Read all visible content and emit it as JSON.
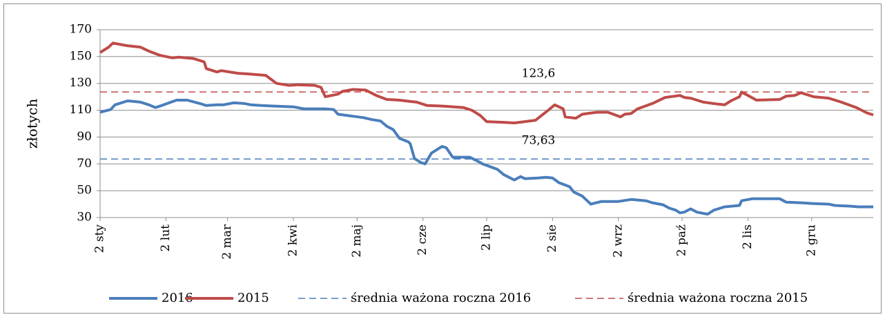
{
  "chart_data": {
    "type": "line",
    "y_label": "złotych",
    "xlim": [
      0,
      364
    ],
    "xticks": [
      {
        "value": 0,
        "label": "2 sty"
      },
      {
        "value": 31,
        "label": "2 lut"
      },
      {
        "value": 60,
        "label": "2 mar"
      },
      {
        "value": 91,
        "label": "2 kwi"
      },
      {
        "value": 121,
        "label": "2 maj"
      },
      {
        "value": 152,
        "label": "2 cze"
      },
      {
        "value": 182,
        "label": "2 lip"
      },
      {
        "value": 213,
        "label": "2 sie"
      },
      {
        "value": 244,
        "label": "2 wrz"
      },
      {
        "value": 274,
        "label": "2 paź"
      },
      {
        "value": 305,
        "label": "2 lis"
      },
      {
        "value": 335,
        "label": "2 gru"
      }
    ],
    "ylim": [
      30,
      170
    ],
    "yticks": [
      30,
      50,
      70,
      90,
      110,
      130,
      150,
      170
    ],
    "grid": true,
    "legend": "bottom",
    "series": [
      {
        "name": "2016",
        "color": "#4a7ebb",
        "x": [
          0,
          5,
          7,
          13,
          19,
          23,
          26,
          29,
          36,
          41,
          47,
          50,
          55,
          58,
          63,
          68,
          71,
          76,
          83,
          91,
          96,
          101,
          106,
          110,
          112,
          119,
          124,
          128,
          132,
          135,
          138,
          141,
          145,
          146,
          148,
          151,
          153,
          156,
          161,
          163,
          166,
          174,
          179,
          180,
          187,
          190,
          195,
          198,
          200,
          206,
          210,
          213,
          216,
          221,
          223,
          227,
          231,
          236,
          244,
          250,
          257,
          260,
          265,
          268,
          271,
          273,
          275,
          278,
          281,
          286,
          289,
          294,
          301,
          302,
          307,
          320,
          323,
          330,
          335,
          343,
          346,
          353,
          357,
          364
        ],
        "values": [
          108.5,
          110.5,
          114,
          117,
          116,
          114,
          112,
          113.5,
          117.5,
          117.5,
          115,
          113.5,
          114,
          114,
          115.5,
          115,
          114,
          113.5,
          113,
          112.5,
          111,
          111,
          111,
          110.5,
          107,
          105.5,
          104.5,
          103,
          102,
          98,
          95.5,
          89,
          86.5,
          85,
          74,
          71,
          70,
          78,
          83,
          82,
          75,
          75,
          71,
          70,
          66,
          62,
          58,
          60.5,
          59,
          59.5,
          60,
          59.5,
          56,
          53,
          49,
          46,
          40,
          42,
          42,
          43.5,
          42.5,
          41,
          39.5,
          37,
          35.5,
          33.5,
          34,
          36.5,
          34,
          32.5,
          35.5,
          38,
          39,
          42.5,
          44,
          44,
          41.5,
          41,
          40.5,
          40,
          39,
          38.5,
          38,
          38
        ]
      },
      {
        "name": "2015",
        "color": "#be4b48",
        "x": [
          0,
          4,
          6,
          13,
          19,
          23,
          28,
          34,
          37,
          44,
          49,
          50,
          55,
          57,
          65,
          70,
          78,
          83,
          89,
          93,
          101,
          104,
          106,
          112,
          114,
          119,
          125,
          130,
          135,
          141,
          146,
          149,
          154,
          162,
          171,
          175,
          179,
          182,
          190,
          195,
          200,
          205,
          211,
          214,
          218,
          219,
          224,
          227,
          234,
          239,
          245,
          247,
          250,
          253,
          260,
          266,
          273,
          275,
          278,
          284,
          291,
          294,
          297,
          301,
          302,
          305,
          309,
          320,
          323,
          327,
          330,
          336,
          343,
          349,
          356,
          361,
          364
        ],
        "values": [
          153,
          157,
          160,
          158,
          157,
          154,
          151,
          149,
          149.5,
          148.5,
          146,
          141,
          138.5,
          139.5,
          137.5,
          137,
          136,
          130,
          128.5,
          129,
          128.5,
          127,
          120,
          122,
          124,
          125.5,
          125,
          121,
          118,
          117.5,
          116.5,
          116,
          113.5,
          113,
          112,
          110,
          106,
          101.5,
          101,
          100.5,
          101.5,
          102.5,
          110,
          114,
          111,
          105,
          104,
          107,
          108.5,
          108.5,
          105,
          107,
          107.5,
          111,
          115,
          119.5,
          121,
          119.5,
          119,
          116,
          114.5,
          114,
          117,
          120,
          123.5,
          121,
          117.5,
          118,
          120.5,
          121,
          123,
          120,
          119,
          116,
          112,
          108,
          106.5
        ]
      },
      {
        "name": "średnia ważona roczna 2016",
        "color": "#4a7ebb",
        "dashed": true,
        "values": [
          73.63
        ],
        "value_labels": [
          "73,63"
        ]
      },
      {
        "name": "średnia ważona roczna 2015",
        "color": "#be4b48",
        "dashed": true,
        "values": [
          123.6
        ],
        "value_labels": [
          "123,6"
        ]
      }
    ]
  }
}
